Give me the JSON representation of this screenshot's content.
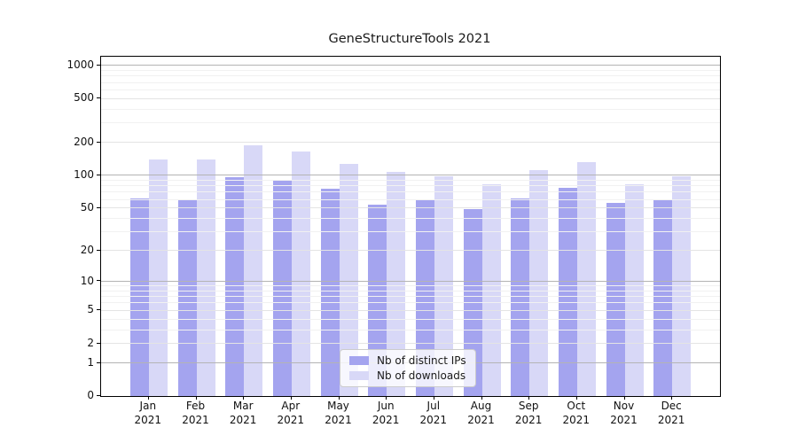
{
  "colors": {
    "bar_distinct_ips": "#a4a4ef",
    "bar_downloads": "#d8d8f7",
    "grid_major": "#b4b4b4",
    "grid_mid": "#e4e4e4",
    "grid_minor": "#f1f1f1",
    "axis": "#000000",
    "text": "#1a1a1a",
    "legend_border": "#cccccc",
    "legend_background": "rgba(255,255,255,0.8)"
  },
  "chart_data": {
    "type": "bar",
    "title": "GeneStructureTools 2021",
    "categories": [
      "Jan 2021",
      "Feb 2021",
      "Mar 2021",
      "Apr 2021",
      "May 2021",
      "Jun 2021",
      "Jul 2021",
      "Aug 2021",
      "Sep 2021",
      "Oct 2021",
      "Nov 2021",
      "Dec 2021"
    ],
    "series": [
      {
        "name": "Nb of distinct IPs",
        "color": "#a4a4ef",
        "values": [
          61,
          60,
          96,
          91,
          75,
          54,
          59,
          49,
          61,
          76,
          56,
          60
        ]
      },
      {
        "name": "Nb of downloads",
        "color": "#d8d8f7",
        "values": [
          139,
          139,
          188,
          165,
          128,
          107,
          98,
          82,
          111,
          133,
          82,
          98
        ]
      }
    ],
    "xlabel": "",
    "ylabel": "",
    "yscale": "log1p",
    "ylim": [
      0,
      1200
    ],
    "yticks": [
      0,
      1,
      2,
      5,
      10,
      20,
      50,
      100,
      200,
      500,
      1000
    ],
    "decade_ticks": [
      1,
      10,
      100,
      1000
    ],
    "minor_yticks": [
      3,
      4,
      6,
      7,
      8,
      9,
      30,
      40,
      60,
      70,
      80,
      90,
      300,
      400,
      600,
      700,
      800,
      900
    ],
    "grid": "on",
    "grid_above_bars": true,
    "legend_position": "lower center",
    "legend_labels": [
      "Nb of distinct IPs",
      "Nb of downloads"
    ]
  }
}
